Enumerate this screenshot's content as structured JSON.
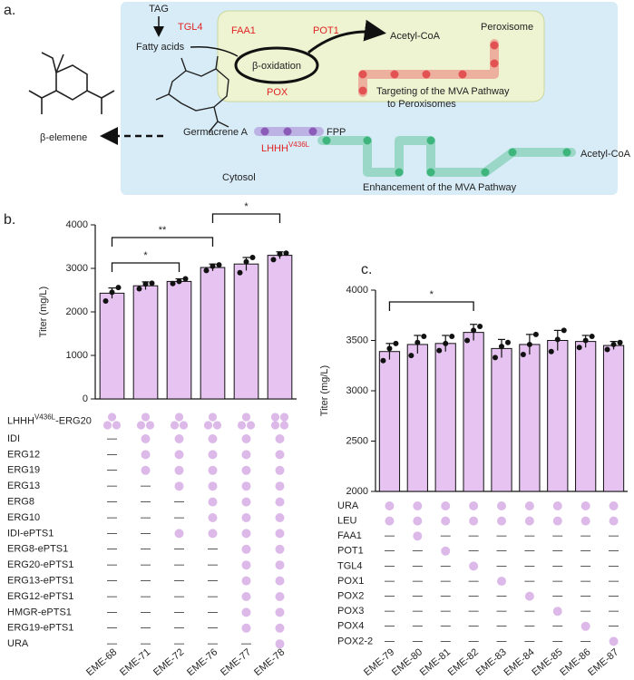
{
  "panel_labels": [
    "a.",
    "b.",
    "c."
  ],
  "diagram": {
    "tag": "TAG",
    "tgl4": "TGL4",
    "fatty_acids": "Fatty acids",
    "faa1": "FAA1",
    "pot1": "POT1",
    "acetyl_coa_perox": "Acetyl-CoA",
    "peroxisome": "Peroxisome",
    "beta_oxidation": "β-oxidation",
    "pox": "POX",
    "targeting": [
      "Targeting of the MVA Pathway",
      "to Peroxisomes"
    ],
    "germacrene": "Germacrene A",
    "enzyme": "LHHH",
    "enzyme_sup": "V436L",
    "fpp": "FPP",
    "beta_elemene": "β-elemene",
    "acetyl_coa_cyto": "Acetyl-CoA",
    "cytosol": "Cytosol",
    "enhancement": "Enhancement of the MVA Pathway"
  },
  "chart_data": [
    {
      "type": "bar",
      "y_label": "Titer (mg/L)",
      "color": "#e6c3f0",
      "categories": [
        "EME-68",
        "EME-71",
        "EME-72",
        "EME-76",
        "EME-77",
        "EME-78"
      ],
      "values": [
        2430,
        2600,
        2700,
        3020,
        3100,
        3300
      ],
      "errors": [
        120,
        90,
        60,
        80,
        150,
        80
      ],
      "points": [
        [
          2250,
          2560,
          2450
        ],
        [
          2530,
          2660,
          2640
        ],
        [
          2650,
          2760,
          2700
        ],
        [
          2950,
          3080,
          3050
        ],
        [
          2900,
          3250,
          3150
        ],
        [
          3200,
          3350,
          3330
        ]
      ],
      "ylim": [
        0,
        4000
      ],
      "yticks": [
        0,
        1000,
        2000,
        3000,
        4000
      ],
      "significance": [
        {
          "from": 0,
          "to": 2,
          "label": "*"
        },
        {
          "from": 0,
          "to": 3,
          "label": "**"
        },
        {
          "from": 3,
          "to": 5,
          "label": "*"
        }
      ],
      "genotype": {
        "absent_mark": "—",
        "copy_row": {
          "label_base": "LHHH",
          "label_sup": "V436L",
          "label_rest": "-ERG20",
          "counts": [
            3,
            3,
            3,
            3,
            3,
            4
          ]
        },
        "rows": [
          {
            "label": "IDI",
            "cells": [
              false,
              true,
              true,
              true,
              true,
              true
            ]
          },
          {
            "label": "ERG12",
            "cells": [
              false,
              true,
              true,
              true,
              true,
              true
            ]
          },
          {
            "label": "ERG19",
            "cells": [
              false,
              true,
              true,
              true,
              true,
              true
            ]
          },
          {
            "label": "ERG13",
            "cells": [
              false,
              false,
              true,
              true,
              true,
              true
            ]
          },
          {
            "label": "ERG8",
            "cells": [
              false,
              false,
              false,
              true,
              true,
              true
            ]
          },
          {
            "label": "ERG10",
            "cells": [
              false,
              false,
              false,
              true,
              true,
              true
            ]
          },
          {
            "label": "IDI-ePTS1",
            "cells": [
              false,
              false,
              true,
              true,
              true,
              true
            ]
          },
          {
            "label": "ERG8-ePTS1",
            "cells": [
              false,
              false,
              false,
              false,
              true,
              true
            ]
          },
          {
            "label": "ERG20-ePTS1",
            "cells": [
              false,
              false,
              false,
              false,
              true,
              true
            ]
          },
          {
            "label": "ERG13-ePTS1",
            "cells": [
              false,
              false,
              false,
              false,
              true,
              true
            ]
          },
          {
            "label": "ERG12-ePTS1",
            "cells": [
              false,
              false,
              false,
              false,
              true,
              true
            ]
          },
          {
            "label": "HMGR-ePTS1",
            "cells": [
              false,
              false,
              false,
              false,
              true,
              true
            ]
          },
          {
            "label": "ERG19-ePTS1",
            "cells": [
              false,
              false,
              false,
              false,
              true,
              true
            ]
          },
          {
            "label": "URA",
            "cells": [
              false,
              false,
              false,
              false,
              false,
              true
            ]
          }
        ]
      }
    },
    {
      "type": "bar",
      "y_label": "Titer (mg/L)",
      "color": "#e6c3f0",
      "categories": [
        "EME-79",
        "EME-80",
        "EME-81",
        "EME-82",
        "EME-83",
        "EME-84",
        "EME-85",
        "EME-86",
        "EME-87"
      ],
      "values": [
        3390,
        3460,
        3470,
        3580,
        3420,
        3460,
        3500,
        3490,
        3450
      ],
      "errors": [
        80,
        90,
        80,
        80,
        90,
        100,
        100,
        60,
        40
      ],
      "points": [
        [
          3300,
          3470,
          3420
        ],
        [
          3350,
          3540,
          3480
        ],
        [
          3400,
          3540,
          3470
        ],
        [
          3500,
          3640,
          3600
        ],
        [
          3330,
          3480,
          3440
        ],
        [
          3360,
          3560,
          3460
        ],
        [
          3390,
          3600,
          3510
        ],
        [
          3430,
          3540,
          3500
        ],
        [
          3410,
          3480,
          3460
        ]
      ],
      "ylim": [
        2000,
        4000
      ],
      "yticks": [
        2000,
        2500,
        3000,
        3500,
        4000
      ],
      "significance": [
        {
          "from": 0,
          "to": 3,
          "label": "*"
        }
      ],
      "genotype": {
        "absent_mark": "—",
        "rows": [
          {
            "label": "URA",
            "cells": [
              true,
              true,
              true,
              true,
              true,
              true,
              true,
              true,
              true
            ]
          },
          {
            "label": "LEU",
            "cells": [
              true,
              true,
              true,
              true,
              true,
              true,
              true,
              true,
              true
            ]
          },
          {
            "label": "FAA1",
            "cells": [
              false,
              true,
              false,
              false,
              false,
              false,
              false,
              false,
              false
            ]
          },
          {
            "label": "POT1",
            "cells": [
              false,
              false,
              true,
              false,
              false,
              false,
              false,
              false,
              false
            ]
          },
          {
            "label": "TGL4",
            "cells": [
              false,
              false,
              false,
              true,
              false,
              false,
              false,
              false,
              false
            ]
          },
          {
            "label": "POX1",
            "cells": [
              false,
              false,
              false,
              false,
              true,
              false,
              false,
              false,
              false
            ]
          },
          {
            "label": "POX2",
            "cells": [
              false,
              false,
              false,
              false,
              false,
              true,
              false,
              false,
              false
            ]
          },
          {
            "label": "POX3",
            "cells": [
              false,
              false,
              false,
              false,
              false,
              false,
              true,
              false,
              false
            ]
          },
          {
            "label": "POX4",
            "cells": [
              false,
              false,
              false,
              false,
              false,
              false,
              false,
              true,
              false
            ]
          },
          {
            "label": "POX2-2",
            "cells": [
              false,
              false,
              false,
              false,
              false,
              false,
              false,
              false,
              true
            ]
          }
        ]
      }
    }
  ]
}
